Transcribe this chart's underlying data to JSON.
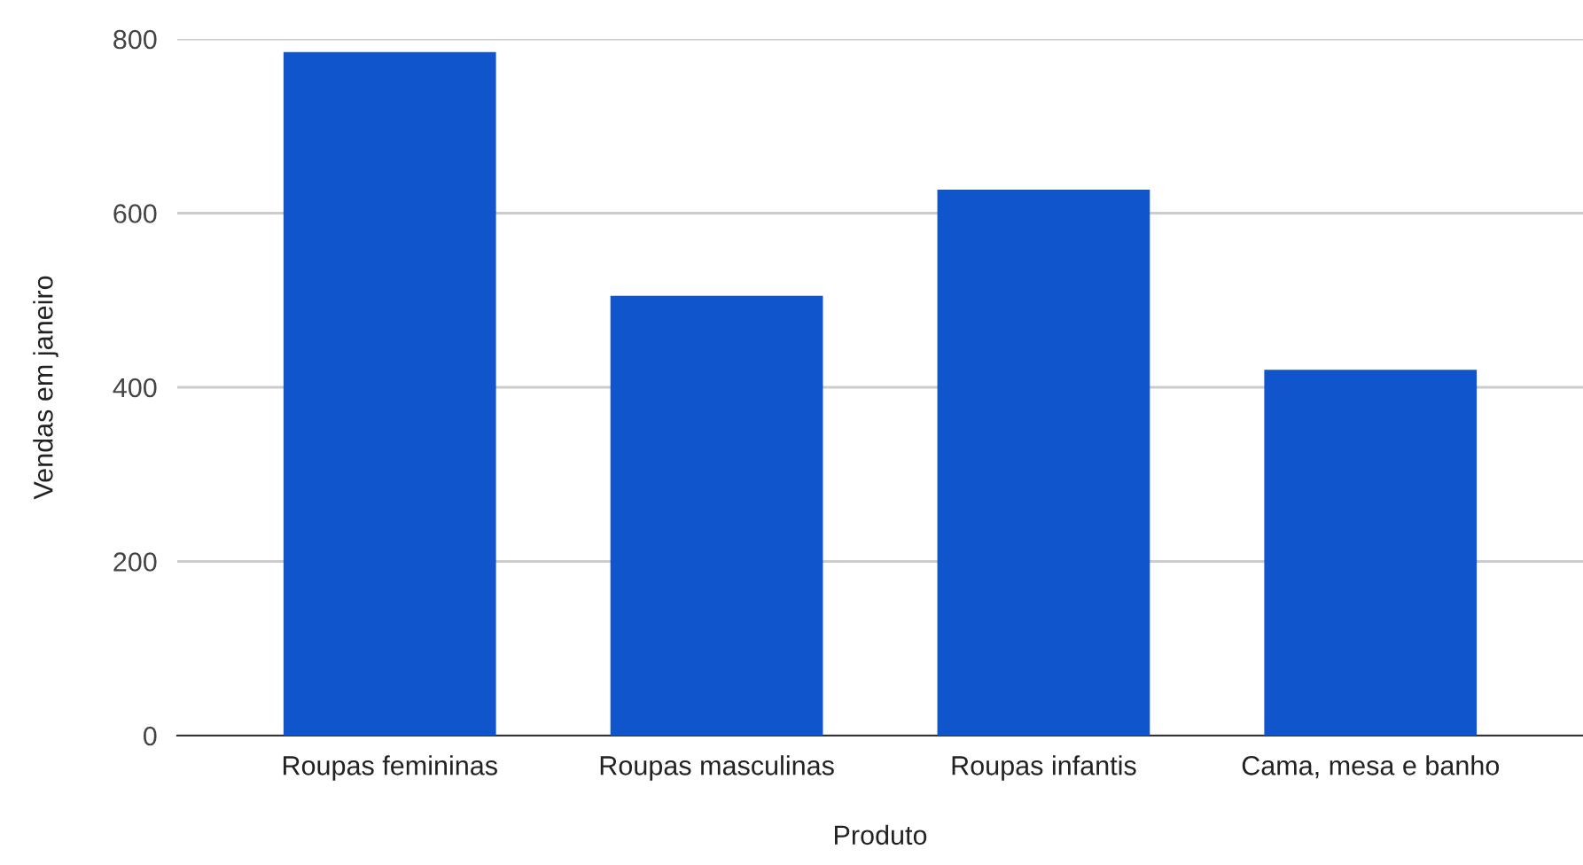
{
  "chart_data": {
    "type": "bar",
    "xlabel": "Produto",
    "ylabel": "Vendas em janeiro",
    "categories": [
      "Roupas femininas",
      "Roupas masculinas",
      "Roupas infantis",
      "Cama, mesa e banho"
    ],
    "values": [
      785,
      505,
      627,
      420
    ],
    "color": "#1155cc",
    "ylim": [
      0,
      800
    ],
    "yticks": [
      0,
      200,
      400,
      600,
      800
    ],
    "grid": "y"
  }
}
